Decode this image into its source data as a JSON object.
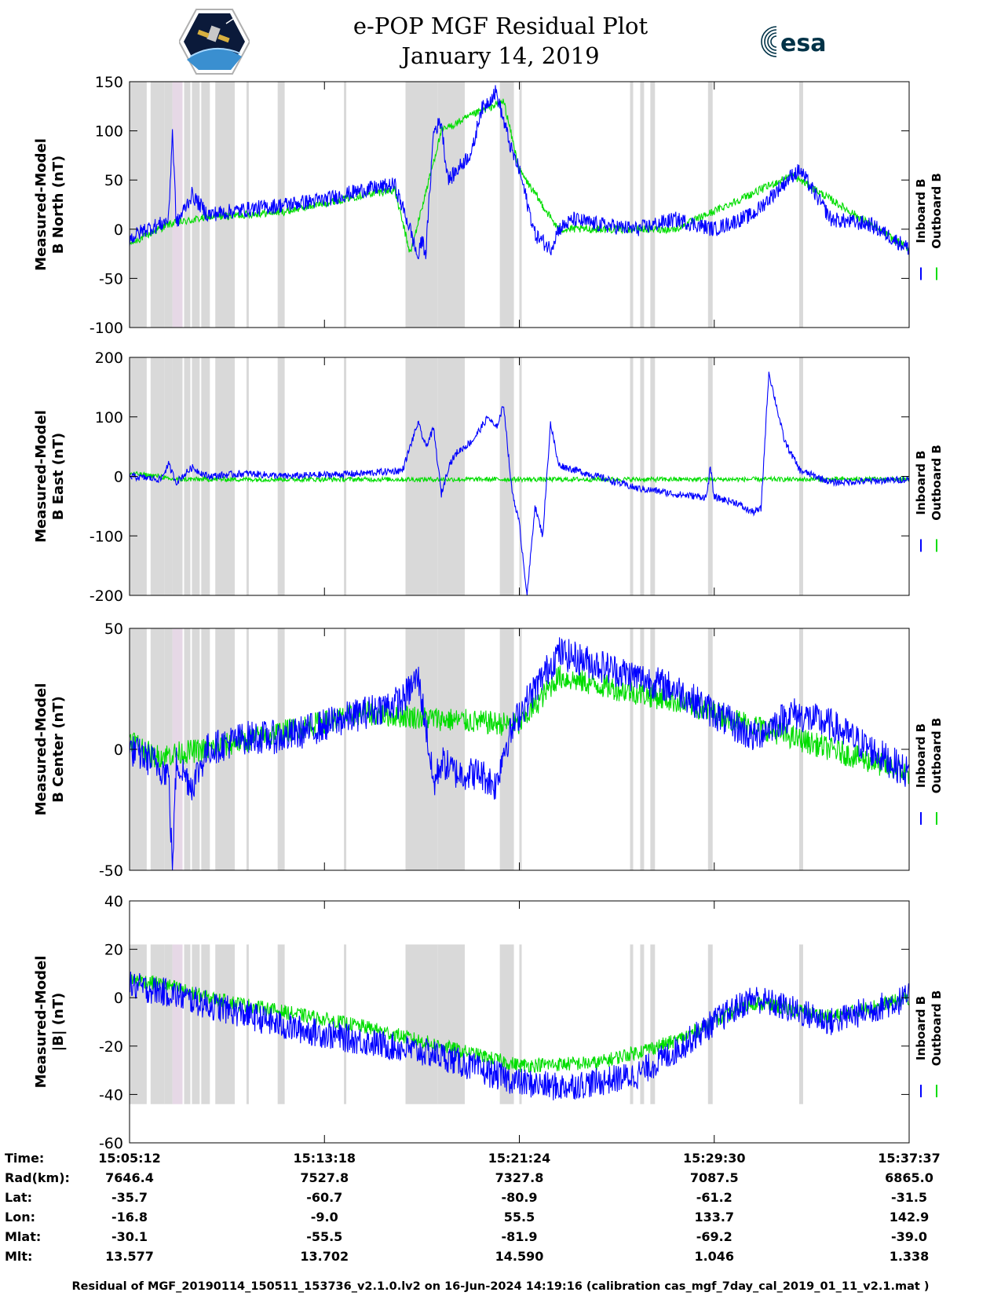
{
  "header": {
    "title_line1": "e-POP MGF Residual Plot",
    "title_line2": "January 14, 2019",
    "logo_left": "CASSIOPE mission patch",
    "logo_right_text": "esa"
  },
  "colors": {
    "inboard": "#0000ff",
    "outboard": "#00dd00",
    "shade": "#d9d9d9",
    "shade_alt": "#e6d8e6"
  },
  "legend": {
    "inboard": "Inboard B",
    "outboard": "Outboard B"
  },
  "chart_data": [
    {
      "type": "line",
      "ylabel_line1": "Measured-Model",
      "ylabel_line2": "B North (nT)",
      "ylim": [
        -100,
        150
      ],
      "yticks": [
        150,
        100,
        50,
        0,
        -50,
        -100
      ],
      "shaded_ylim": [
        -100,
        150
      ],
      "series": [
        {
          "name": "Inboard B",
          "t": [
            0,
            0.02,
            0.04,
            0.05,
            0.055,
            0.06,
            0.08,
            0.1,
            0.15,
            0.2,
            0.25,
            0.3,
            0.34,
            0.36,
            0.37,
            0.375,
            0.38,
            0.39,
            0.4,
            0.405,
            0.41,
            0.42,
            0.43,
            0.44,
            0.45,
            0.46,
            0.47,
            0.48,
            0.49,
            0.5,
            0.52,
            0.54,
            0.55,
            0.56,
            0.57,
            0.58,
            0.6,
            0.65,
            0.7,
            0.75,
            0.8,
            0.85,
            0.86,
            0.9,
            0.95,
            1.0
          ],
          "values": [
            -10,
            0,
            5,
            10,
            100,
            5,
            35,
            15,
            20,
            25,
            30,
            40,
            45,
            0,
            -30,
            -10,
            -25,
            100,
            110,
            70,
            50,
            60,
            70,
            80,
            120,
            130,
            140,
            110,
            80,
            60,
            -5,
            -20,
            0,
            5,
            10,
            8,
            5,
            0,
            10,
            0,
            15,
            55,
            60,
            10,
            5,
            -20
          ],
          "noise": 8
        },
        {
          "name": "Outboard B",
          "t": [
            0,
            0.05,
            0.1,
            0.2,
            0.3,
            0.34,
            0.36,
            0.4,
            0.45,
            0.48,
            0.5,
            0.55,
            0.7,
            0.85,
            1.0
          ],
          "values": [
            -15,
            5,
            12,
            18,
            35,
            40,
            -25,
            100,
            120,
            130,
            60,
            0,
            0,
            55,
            -20
          ],
          "noise": 4
        }
      ]
    },
    {
      "type": "line",
      "ylabel_line1": "Measured-Model",
      "ylabel_line2": "B East (nT)",
      "ylim": [
        -200,
        200
      ],
      "yticks": [
        200,
        100,
        0,
        -100,
        -200
      ],
      "shaded_ylim": [
        -200,
        200
      ],
      "series": [
        {
          "name": "Inboard B",
          "t": [
            0,
            0.04,
            0.05,
            0.06,
            0.08,
            0.1,
            0.15,
            0.2,
            0.3,
            0.35,
            0.37,
            0.38,
            0.39,
            0.4,
            0.41,
            0.42,
            0.44,
            0.46,
            0.47,
            0.48,
            0.49,
            0.5,
            0.51,
            0.52,
            0.53,
            0.54,
            0.55,
            0.56,
            0.6,
            0.65,
            0.68,
            0.7,
            0.74,
            0.745,
            0.75,
            0.78,
            0.79,
            0.8,
            0.81,
            0.82,
            0.84,
            0.86,
            0.9,
            0.95,
            1.0
          ],
          "values": [
            0,
            -5,
            20,
            -10,
            15,
            0,
            5,
            0,
            5,
            10,
            90,
            50,
            80,
            -30,
            20,
            40,
            60,
            100,
            80,
            120,
            -20,
            -80,
            -200,
            -50,
            -100,
            90,
            20,
            15,
            0,
            -20,
            -25,
            -30,
            -35,
            15,
            -35,
            -45,
            -55,
            -60,
            -55,
            175,
            60,
            10,
            -10,
            -8,
            -5
          ],
          "noise": 6
        },
        {
          "name": "Outboard B",
          "t": [
            0,
            0.04,
            0.05,
            1.0
          ],
          "values": [
            5,
            0,
            -5,
            -5
          ],
          "noise": 4
        }
      ]
    },
    {
      "type": "line",
      "ylabel_line1": "Measured-Model",
      "ylabel_line2": "B Center (nT)",
      "ylim": [
        -50,
        50
      ],
      "yticks": [
        50,
        0,
        -50
      ],
      "shaded_ylim": [
        -50,
        50
      ],
      "series": [
        {
          "name": "Inboard B",
          "t": [
            0,
            0.03,
            0.05,
            0.055,
            0.06,
            0.08,
            0.1,
            0.15,
            0.2,
            0.25,
            0.3,
            0.35,
            0.37,
            0.38,
            0.39,
            0.4,
            0.42,
            0.45,
            0.47,
            0.48,
            0.5,
            0.55,
            0.6,
            0.7,
            0.75,
            0.8,
            0.85,
            0.9,
            0.95,
            1.0
          ],
          "values": [
            0,
            -5,
            -10,
            -50,
            -5,
            -15,
            0,
            5,
            5,
            10,
            15,
            20,
            30,
            10,
            -15,
            -5,
            -10,
            -10,
            -15,
            0,
            15,
            40,
            35,
            25,
            15,
            5,
            15,
            10,
            0,
            -10
          ],
          "noise": 7
        },
        {
          "name": "Outboard B",
          "t": [
            0,
            0.03,
            0.1,
            0.3,
            0.5,
            0.55,
            0.7,
            0.85,
            1.0
          ],
          "values": [
            5,
            -3,
            0,
            15,
            10,
            30,
            20,
            5,
            -10
          ],
          "noise": 5
        }
      ]
    },
    {
      "type": "line",
      "ylabel_line1": "Measured-Model",
      "ylabel_line2": "|B| (nT)",
      "ylim": [
        -60,
        40
      ],
      "yticks": [
        40,
        20,
        0,
        -20,
        -40,
        -60
      ],
      "shaded_ylim": [
        -44,
        22
      ],
      "series": [
        {
          "name": "Inboard B",
          "t": [
            0,
            0.05,
            0.1,
            0.15,
            0.2,
            0.3,
            0.4,
            0.45,
            0.5,
            0.55,
            0.6,
            0.65,
            0.7,
            0.75,
            0.8,
            0.85,
            0.9,
            0.95,
            1.0
          ],
          "values": [
            5,
            2,
            -3,
            -7,
            -12,
            -18,
            -24,
            -30,
            -35,
            -37,
            -35,
            -32,
            -22,
            -10,
            0,
            -5,
            -10,
            -5,
            0
          ],
          "noise": 6
        },
        {
          "name": "Outboard B",
          "t": [
            0,
            0.05,
            0.1,
            0.3,
            0.5,
            0.6,
            0.7,
            0.8,
            0.9,
            1.0
          ],
          "values": [
            8,
            5,
            0,
            -12,
            -28,
            -27,
            -18,
            -2,
            -8,
            0
          ],
          "noise": 3
        }
      ]
    }
  ],
  "shaded_intervals": [
    [
      0.0,
      0.022
    ],
    [
      0.027,
      0.045
    ],
    [
      0.045,
      0.055
    ],
    [
      0.055,
      0.068
    ],
    [
      0.07,
      0.078
    ],
    [
      0.08,
      0.09
    ],
    [
      0.092,
      0.103
    ],
    [
      0.11,
      0.135
    ],
    [
      0.15,
      0.153
    ],
    [
      0.19,
      0.199
    ],
    [
      0.275,
      0.278
    ],
    [
      0.354,
      0.395
    ],
    [
      0.395,
      0.43
    ],
    [
      0.475,
      0.493
    ],
    [
      0.5,
      0.503
    ],
    [
      0.642,
      0.646
    ],
    [
      0.655,
      0.66
    ],
    [
      0.668,
      0.674
    ],
    [
      0.742,
      0.748
    ],
    [
      0.859,
      0.864
    ]
  ],
  "footer": {
    "row_labels": [
      "Time:",
      "Rad(km):",
      "Lat:",
      "Lon:",
      "Mlat:",
      "Mlt:"
    ],
    "columns": [
      {
        "t": 0.0,
        "values": [
          "15:05:12",
          "7646.4",
          "-35.7",
          "-16.8",
          "-30.1",
          "13.577"
        ]
      },
      {
        "t": 0.25,
        "values": [
          "15:13:18",
          "7527.8",
          "-60.7",
          "-9.0",
          "-55.5",
          "13.702"
        ]
      },
      {
        "t": 0.5,
        "values": [
          "15:21:24",
          "7327.8",
          "-80.9",
          "55.5",
          "-81.9",
          "14.590"
        ]
      },
      {
        "t": 0.75,
        "values": [
          "15:29:30",
          "7087.5",
          "-61.2",
          "133.7",
          "-69.2",
          "1.046"
        ]
      },
      {
        "t": 1.0,
        "values": [
          "15:37:37",
          "6865.0",
          "-31.5",
          "142.9",
          "-39.0",
          "1.338"
        ]
      }
    ],
    "caption": "Residual of MGF_20190114_150511_153736_v2.1.0.lv2 on 16-Jun-2024 14:19:16 (calibration cas_mgf_7day_cal_2019_01_11_v2.1.mat )"
  }
}
